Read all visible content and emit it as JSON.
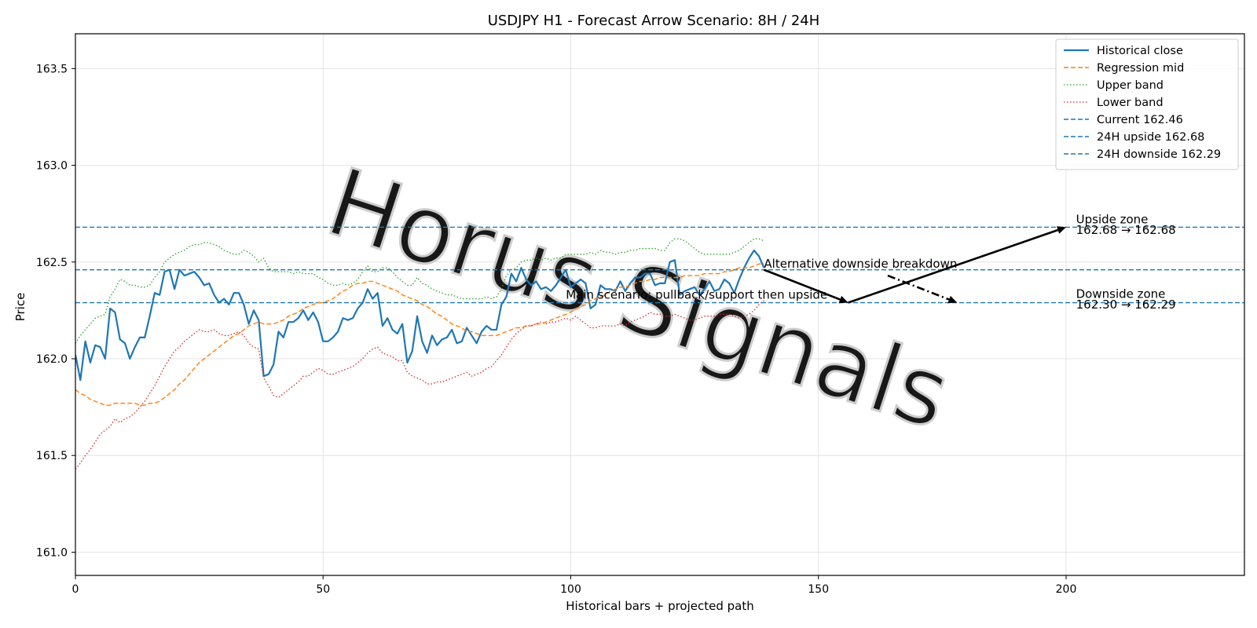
{
  "chart_data": {
    "type": "line",
    "title": "USDJPY H1 - Forecast Arrow Scenario: 8H / 24H",
    "xlabel": "Historical bars + projected path",
    "ylabel": "Price",
    "xlim": [
      0,
      236
    ],
    "ylim": [
      160.88,
      163.68
    ],
    "xticks": [
      0,
      50,
      100,
      150,
      200
    ],
    "yticks": [
      "161.0",
      "161.5",
      "162.0",
      "162.5",
      "163.0",
      "163.5"
    ],
    "grid": true,
    "legend_position": "top-right",
    "colors": {
      "historical": "#1f77b4",
      "regression": "#ff7f0e",
      "upper": "#2ca02c",
      "lower": "#d62728",
      "levels": "#1f77b4",
      "arrows": "#000000",
      "watermark": "#c8c8c8"
    },
    "series": [
      {
        "name": "Historical close",
        "style": "solid",
        "values": [
          162.02,
          161.89,
          162.09,
          161.98,
          162.07,
          162.06,
          162.0,
          162.26,
          162.24,
          162.1,
          162.08,
          162.0,
          162.06,
          162.11,
          162.11,
          162.22,
          162.34,
          162.33,
          162.45,
          162.46,
          162.36,
          162.46,
          162.43,
          162.44,
          162.45,
          162.42,
          162.38,
          162.39,
          162.33,
          162.29,
          162.31,
          162.28,
          162.34,
          162.34,
          162.28,
          162.18,
          162.25,
          162.2,
          161.91,
          161.92,
          161.97,
          162.14,
          162.11,
          162.19,
          162.19,
          162.21,
          162.25,
          162.2,
          162.24,
          162.19,
          162.09,
          162.09,
          162.11,
          162.14,
          162.21,
          162.2,
          162.21,
          162.26,
          162.29,
          162.36,
          162.31,
          162.34,
          162.17,
          162.21,
          162.15,
          162.13,
          162.18,
          161.98,
          162.04,
          162.22,
          162.09,
          162.03,
          162.12,
          162.07,
          162.1,
          162.11,
          162.15,
          162.08,
          162.09,
          162.16,
          162.12,
          162.08,
          162.14,
          162.17,
          162.15,
          162.15,
          162.28,
          162.32,
          162.44,
          162.4,
          162.47,
          162.41,
          162.38,
          162.4,
          162.36,
          162.37,
          162.35,
          162.38,
          162.42,
          162.46,
          162.37,
          162.39,
          162.41,
          162.39,
          162.26,
          162.28,
          162.38,
          162.36,
          162.36,
          162.35,
          162.4,
          162.35,
          162.39,
          162.42,
          162.42,
          162.44,
          162.44,
          162.38,
          162.39,
          162.39,
          162.5,
          162.51,
          162.33,
          162.35,
          162.36,
          162.37,
          162.33,
          162.36,
          162.4,
          162.35,
          162.36,
          162.41,
          162.39,
          162.34,
          162.41,
          162.47,
          162.52,
          162.56,
          162.53,
          162.47
        ]
      },
      {
        "name": "Regression mid",
        "style": "dashed",
        "values": [
          161.84,
          161.82,
          161.81,
          161.79,
          161.78,
          161.77,
          161.76,
          161.76,
          161.77,
          161.77,
          161.77,
          161.77,
          161.77,
          161.76,
          161.76,
          161.77,
          161.77,
          161.78,
          161.8,
          161.82,
          161.84,
          161.87,
          161.89,
          161.92,
          161.95,
          161.98,
          162.0,
          162.02,
          162.04,
          162.06,
          162.08,
          162.1,
          162.12,
          162.13,
          162.15,
          162.17,
          162.18,
          162.19,
          162.18,
          162.18,
          162.18,
          162.19,
          162.2,
          162.22,
          162.23,
          162.24,
          162.26,
          162.27,
          162.28,
          162.29,
          162.29,
          162.3,
          162.31,
          162.33,
          162.35,
          162.36,
          162.38,
          162.39,
          162.39,
          162.4,
          162.4,
          162.39,
          162.38,
          162.37,
          162.36,
          162.35,
          162.33,
          162.32,
          162.31,
          162.3,
          162.28,
          162.27,
          162.25,
          162.23,
          162.22,
          162.2,
          162.18,
          162.17,
          162.16,
          162.14,
          162.14,
          162.13,
          162.12,
          162.12,
          162.12,
          162.12,
          162.13,
          162.14,
          162.15,
          162.16,
          162.16,
          162.17,
          162.17,
          162.18,
          162.18,
          162.19,
          162.2,
          162.21,
          162.22,
          162.23,
          162.24,
          162.26,
          162.27,
          162.28,
          162.3,
          162.31,
          162.32,
          162.33,
          162.35,
          162.36,
          162.37,
          162.37,
          162.38,
          162.39,
          162.4,
          162.4,
          162.41,
          162.41,
          162.42,
          162.42,
          162.42,
          162.42,
          162.42,
          162.43,
          162.43,
          162.43,
          162.43,
          162.44,
          162.44,
          162.44,
          162.44,
          162.45,
          162.45,
          162.46,
          162.47,
          162.47,
          162.47,
          162.48,
          162.49,
          162.49
        ]
      },
      {
        "name": "Upper band",
        "style": "dotted",
        "values": [
          162.08,
          162.12,
          162.15,
          162.18,
          162.21,
          162.22,
          162.23,
          162.32,
          162.36,
          162.41,
          162.4,
          162.38,
          162.38,
          162.37,
          162.37,
          162.38,
          162.42,
          162.45,
          162.5,
          162.52,
          162.54,
          162.55,
          162.56,
          162.58,
          162.59,
          162.59,
          162.6,
          162.6,
          162.59,
          162.58,
          162.56,
          162.55,
          162.54,
          162.54,
          162.56,
          162.55,
          162.53,
          162.5,
          162.52,
          162.47,
          162.45,
          162.45,
          162.45,
          162.45,
          162.44,
          162.45,
          162.44,
          162.44,
          162.44,
          162.42,
          162.41,
          162.39,
          162.38,
          162.38,
          162.39,
          162.38,
          162.39,
          162.41,
          162.45,
          162.48,
          162.45,
          162.45,
          162.47,
          162.47,
          162.45,
          162.42,
          162.4,
          162.38,
          162.38,
          162.42,
          162.39,
          162.38,
          162.36,
          162.35,
          162.34,
          162.33,
          162.33,
          162.32,
          162.31,
          162.31,
          162.31,
          162.31,
          162.31,
          162.32,
          162.31,
          162.32,
          162.36,
          162.43,
          162.46,
          162.47,
          162.5,
          162.51,
          162.51,
          162.52,
          162.51,
          162.52,
          162.51,
          162.52,
          162.52,
          162.54,
          162.54,
          162.54,
          162.54,
          162.54,
          162.55,
          162.54,
          162.56,
          162.55,
          162.55,
          162.54,
          162.55,
          162.55,
          162.56,
          162.56,
          162.57,
          162.57,
          162.57,
          162.57,
          162.56,
          162.56,
          162.6,
          162.62,
          162.62,
          162.61,
          162.59,
          162.57,
          162.55,
          162.54,
          162.54,
          162.54,
          162.54,
          162.54,
          162.54,
          162.55,
          162.56,
          162.58,
          162.6,
          162.62,
          162.62,
          162.61
        ]
      },
      {
        "name": "Lower band",
        "style": "dotted",
        "values": [
          161.43,
          161.46,
          161.5,
          161.53,
          161.57,
          161.61,
          161.63,
          161.65,
          161.69,
          161.67,
          161.69,
          161.7,
          161.72,
          161.75,
          161.78,
          161.82,
          161.86,
          161.91,
          161.96,
          162.0,
          162.04,
          162.06,
          162.09,
          162.11,
          162.13,
          162.15,
          162.14,
          162.14,
          162.15,
          162.13,
          162.12,
          162.12,
          162.13,
          162.14,
          162.12,
          162.08,
          162.06,
          162.05,
          161.9,
          161.86,
          161.81,
          161.8,
          161.82,
          161.84,
          161.86,
          161.88,
          161.91,
          161.91,
          161.93,
          161.95,
          161.94,
          161.92,
          161.92,
          161.93,
          161.94,
          161.95,
          161.96,
          161.98,
          162.0,
          162.03,
          162.05,
          162.06,
          162.03,
          162.02,
          162.01,
          161.99,
          161.99,
          161.93,
          161.91,
          161.9,
          161.89,
          161.87,
          161.87,
          161.88,
          161.88,
          161.89,
          161.9,
          161.91,
          161.92,
          161.93,
          161.91,
          161.92,
          161.93,
          161.95,
          161.96,
          161.99,
          162.02,
          162.06,
          162.1,
          162.13,
          162.15,
          162.17,
          162.17,
          162.18,
          162.19,
          162.18,
          162.19,
          162.19,
          162.2,
          162.21,
          162.2,
          162.22,
          162.2,
          162.18,
          162.16,
          162.16,
          162.17,
          162.17,
          162.17,
          162.17,
          162.18,
          162.17,
          162.19,
          162.2,
          162.21,
          162.22,
          162.24,
          162.23,
          162.23,
          162.22,
          162.22,
          162.23,
          162.22,
          162.21,
          162.2,
          162.2,
          162.21,
          162.22,
          162.22,
          162.22,
          162.23,
          162.23,
          162.23,
          162.22,
          162.21,
          162.22,
          162.23,
          162.25,
          162.28,
          162.3
        ]
      }
    ],
    "levels": [
      {
        "name": "Current 162.46",
        "value": 162.46,
        "style": "dashed"
      },
      {
        "name": "24H upside 162.68",
        "value": 162.68,
        "style": "dashed"
      },
      {
        "name": "24H downside 162.29",
        "value": 162.29,
        "style": "dashed"
      }
    ],
    "arrows": [
      {
        "kind": "main-leg-1",
        "from": [
          139,
          162.46
        ],
        "to": [
          156,
          162.29
        ],
        "style": "solid"
      },
      {
        "kind": "main-leg-2",
        "from": [
          156,
          162.29
        ],
        "to": [
          200,
          162.68
        ],
        "style": "solid"
      },
      {
        "kind": "alternative",
        "from": [
          164,
          162.43
        ],
        "to": [
          178,
          162.29
        ],
        "style": "dashdot"
      }
    ],
    "annotations": [
      {
        "text": "Alternative downside breakdown",
        "x": 139,
        "y": 162.47
      },
      {
        "text": "Main scenario: pullback/support then upside",
        "x": 99,
        "y": 162.31
      },
      {
        "text": "Upside zone",
        "x": 202,
        "y": 162.7
      },
      {
        "text": "162.68 → 162.68",
        "x": 202,
        "y": 162.645
      },
      {
        "text": "Downside zone",
        "x": 202,
        "y": 162.315
      },
      {
        "text": "162.30 → 162.29",
        "x": 202,
        "y": 162.26
      }
    ],
    "watermark": "Horus Signals"
  }
}
